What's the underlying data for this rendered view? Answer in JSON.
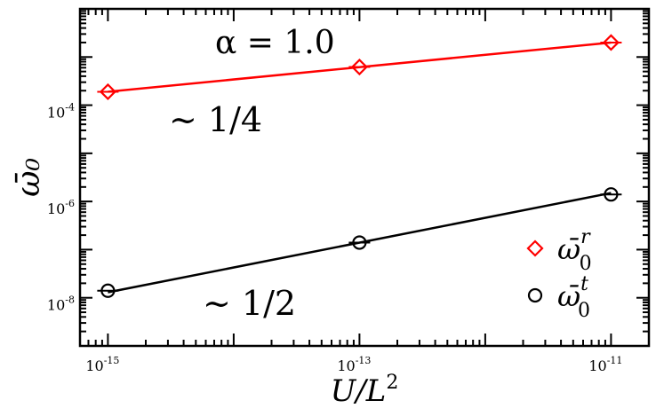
{
  "chart_data": {
    "type": "scatter",
    "x_scale": "log",
    "y_scale": "log",
    "xlim": [
      6e-16,
      2e-11
    ],
    "ylim": [
      1e-09,
      0.01
    ],
    "grid": false,
    "legend_position": "bottom-right",
    "xlabel": "U/L²",
    "ylabel": "ω̄₀",
    "x_ticks": [
      {
        "value": 1e-15,
        "base": "10",
        "exp": "-15"
      },
      {
        "value": 1e-13,
        "base": "10",
        "exp": "-13"
      },
      {
        "value": 1e-11,
        "base": "10",
        "exp": "-11"
      }
    ],
    "y_ticks": [
      {
        "value": 1e-08,
        "base": "10",
        "exp": "-8"
      },
      {
        "value": 1e-06,
        "base": "10",
        "exp": "-6"
      },
      {
        "value": 0.0001,
        "base": "10",
        "exp": "-4"
      }
    ],
    "series": [
      {
        "name": "ω̄₀ʳ",
        "name_base": "ω̄",
        "name_sub": "0",
        "name_sup": "r",
        "marker": "diamond",
        "color": "#ff0000",
        "x": [
          1e-15,
          1e-13,
          1e-11
        ],
        "y": [
          0.00019,
          0.00062,
          0.002
        ],
        "fit": {
          "x": [
            1e-15,
            1e-11
          ],
          "y": [
            0.00019,
            0.002
          ]
        }
      },
      {
        "name": "ω̄₀ᵗ",
        "name_base": "ω̄",
        "name_sub": "0",
        "name_sup": "t",
        "marker": "circle",
        "color": "#000000",
        "x": [
          1e-15,
          1e-13,
          1e-11
        ],
        "y": [
          1.4e-08,
          1.4e-07,
          1.4e-06
        ],
        "fit": {
          "x": [
            1e-15,
            1e-11
          ],
          "y": [
            1.3e-08,
            1.5e-06
          ]
        }
      }
    ],
    "annotations": [
      {
        "text": "α = 1.0"
      },
      {
        "text": "∼ 1/4"
      },
      {
        "text": "∼ 1/2"
      }
    ]
  }
}
